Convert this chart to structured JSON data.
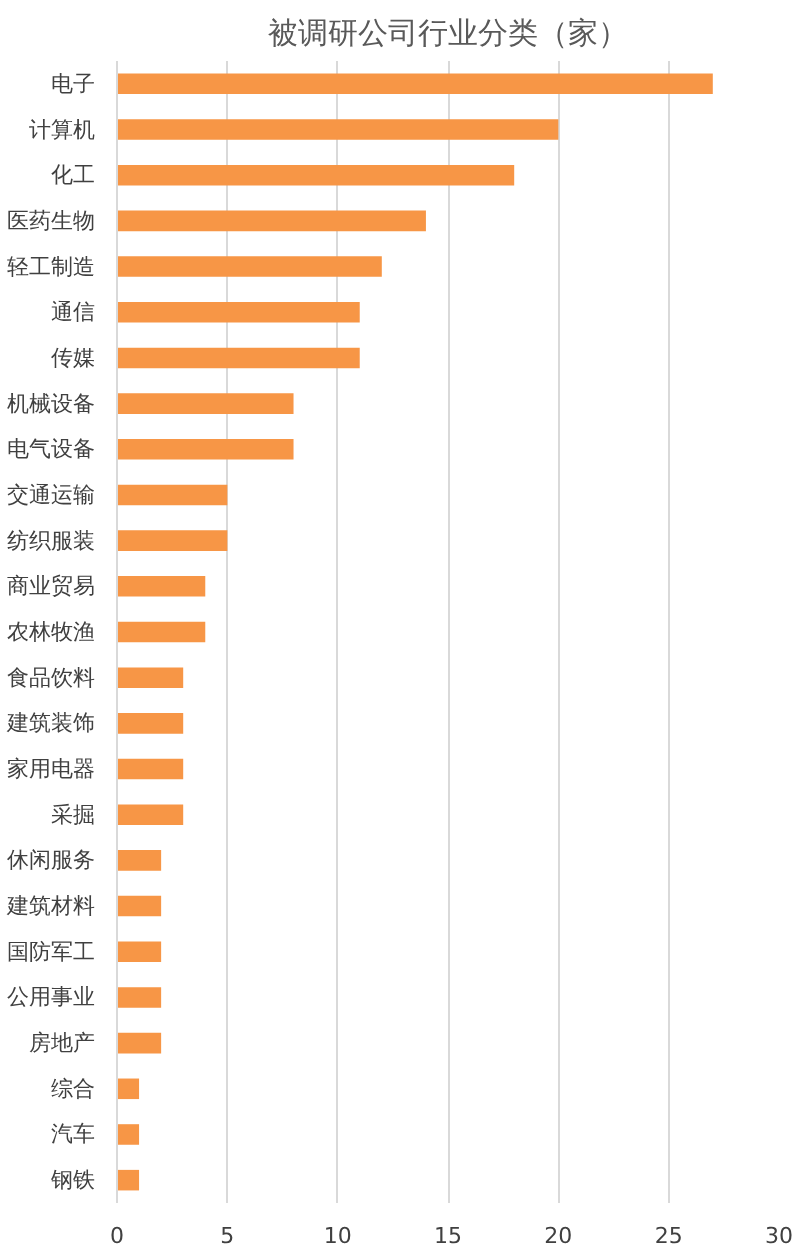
{
  "chart_data": {
    "type": "bar",
    "orientation": "horizontal",
    "title": "被调研公司行业分类（家）",
    "categories": [
      "电子",
      "计算机",
      "化工",
      "医药生物",
      "轻工制造",
      "通信",
      "传媒",
      "机械设备",
      "电气设备",
      "交通运输",
      "纺织服装",
      "商业贸易",
      "农林牧渔",
      "食品饮料",
      "建筑装饰",
      "家用电器",
      "采掘",
      "休闲服务",
      "建筑材料",
      "国防军工",
      "公用事业",
      "房地产",
      "综合",
      "汽车",
      "钢铁"
    ],
    "values": [
      27,
      20,
      18,
      14,
      12,
      11,
      11,
      8,
      8,
      5,
      5,
      4,
      4,
      3,
      3,
      3,
      3,
      2,
      2,
      2,
      2,
      2,
      1,
      1,
      1
    ],
    "color": "#f79646",
    "xlim": [
      0,
      30
    ],
    "xticks": [
      0,
      5,
      10,
      15,
      20,
      25,
      30
    ],
    "grid": "x"
  }
}
